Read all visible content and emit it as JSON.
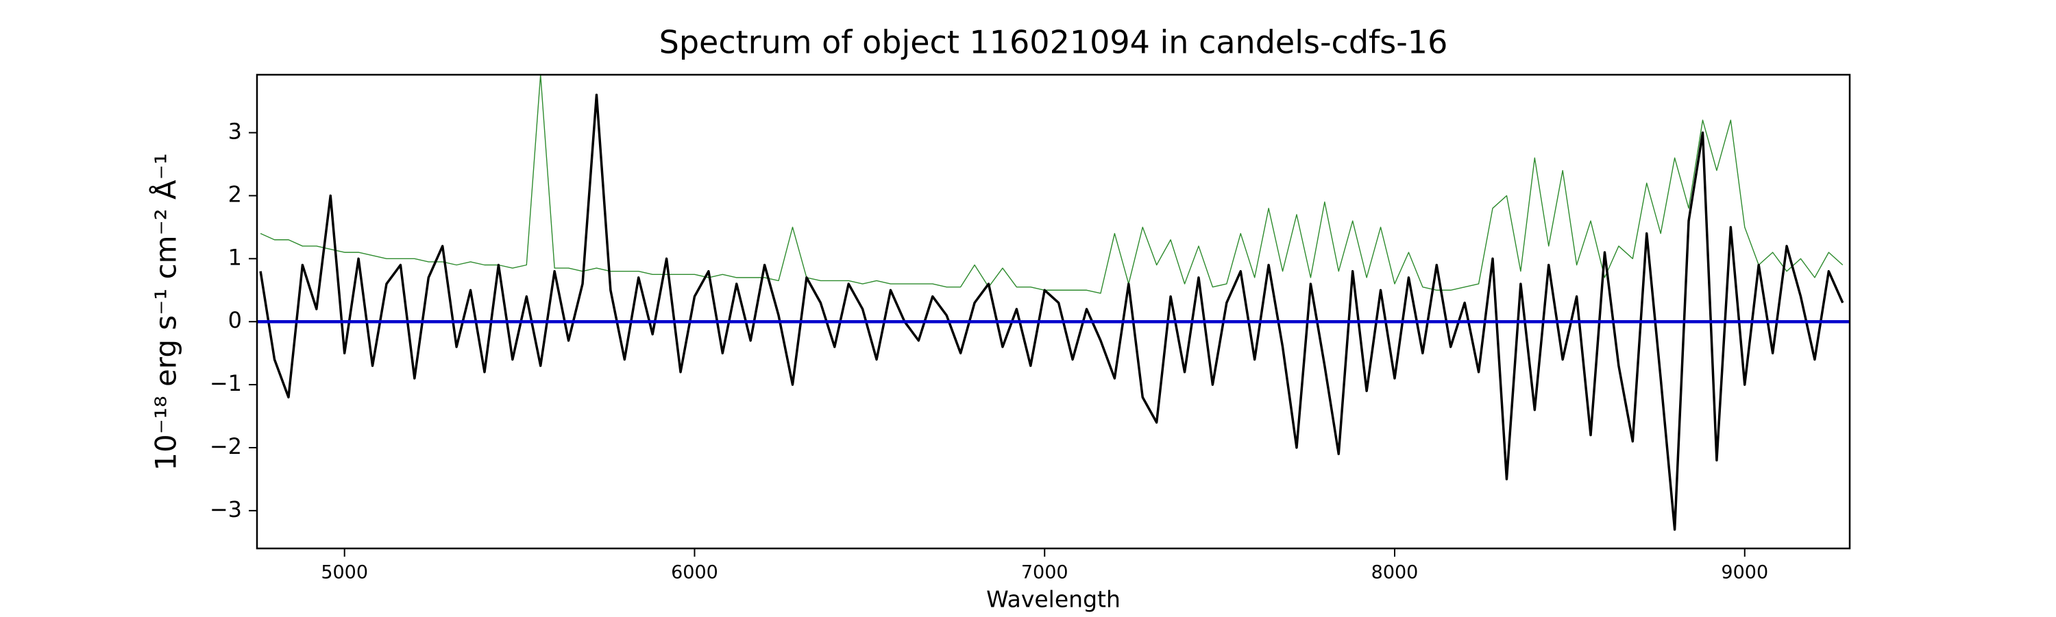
{
  "chart_data": {
    "type": "line",
    "title": "Spectrum of object 116021094 in candels-cdfs-16",
    "xlabel": "Wavelength",
    "ylabel": "10⁻¹⁸ erg s⁻¹ cm⁻² Å⁻¹",
    "xlim": [
      4750,
      9300
    ],
    "ylim": [
      -3.6,
      3.92
    ],
    "xticks": [
      5000,
      6000,
      7000,
      8000,
      9000
    ],
    "yticks": [
      {
        "value": -3,
        "label": "−3"
      },
      {
        "value": -2,
        "label": "−2"
      },
      {
        "value": -1,
        "label": "−1"
      },
      0,
      1,
      2,
      3
    ],
    "series": [
      {
        "color": "#2e8b2e",
        "linewidth": 1.4,
        "x": [
          4760,
          4800,
          4840,
          4880,
          4920,
          4960,
          5000,
          5040,
          5080,
          5120,
          5160,
          5200,
          5240,
          5280,
          5320,
          5360,
          5400,
          5440,
          5480,
          5520,
          5560,
          5600,
          5640,
          5680,
          5720,
          5760,
          5800,
          5840,
          5880,
          5920,
          5960,
          6000,
          6040,
          6080,
          6120,
          6160,
          6200,
          6240,
          6280,
          6320,
          6360,
          6400,
          6440,
          6480,
          6520,
          6560,
          6600,
          6640,
          6680,
          6720,
          6760,
          6800,
          6840,
          6880,
          6920,
          6960,
          7000,
          7040,
          7080,
          7120,
          7160,
          7200,
          7240,
          7280,
          7320,
          7360,
          7400,
          7440,
          7480,
          7520,
          7560,
          7600,
          7640,
          7680,
          7720,
          7760,
          7800,
          7840,
          7880,
          7920,
          7960,
          8000,
          8040,
          8080,
          8120,
          8160,
          8200,
          8240,
          8280,
          8320,
          8360,
          8400,
          8440,
          8480,
          8520,
          8560,
          8600,
          8640,
          8680,
          8720,
          8760,
          8800,
          8840,
          8880,
          8920,
          8960,
          9000,
          9040,
          9080,
          9120,
          9160,
          9200,
          9240,
          9280
        ],
        "values": [
          1.4,
          1.3,
          1.3,
          1.2,
          1.2,
          1.15,
          1.1,
          1.1,
          1.05,
          1.0,
          1.0,
          1.0,
          0.95,
          0.95,
          0.9,
          0.95,
          0.9,
          0.9,
          0.85,
          0.9,
          3.92,
          0.85,
          0.85,
          0.8,
          0.85,
          0.8,
          0.8,
          0.8,
          0.75,
          0.75,
          0.75,
          0.75,
          0.7,
          0.75,
          0.7,
          0.7,
          0.7,
          0.65,
          1.5,
          0.7,
          0.65,
          0.65,
          0.65,
          0.6,
          0.65,
          0.6,
          0.6,
          0.6,
          0.6,
          0.55,
          0.55,
          0.9,
          0.55,
          0.85,
          0.55,
          0.55,
          0.5,
          0.5,
          0.5,
          0.5,
          0.45,
          1.4,
          0.6,
          1.5,
          0.9,
          1.3,
          0.6,
          1.2,
          0.55,
          0.6,
          1.4,
          0.7,
          1.8,
          0.8,
          1.7,
          0.7,
          1.9,
          0.8,
          1.6,
          0.7,
          1.5,
          0.6,
          1.1,
          0.55,
          0.5,
          0.5,
          0.55,
          0.6,
          1.8,
          2.0,
          0.8,
          2.6,
          1.2,
          2.4,
          0.9,
          1.6,
          0.7,
          1.2,
          1.0,
          2.2,
          1.4,
          2.6,
          1.8,
          3.2,
          2.4,
          3.2,
          1.5,
          0.9,
          1.1,
          0.8,
          1.0,
          0.7,
          1.1,
          0.9
        ]
      },
      {
        "color": "#000000",
        "linewidth": 3.5,
        "x": [
          4760,
          4800,
          4840,
          4880,
          4920,
          4960,
          5000,
          5040,
          5080,
          5120,
          5160,
          5200,
          5240,
          5280,
          5320,
          5360,
          5400,
          5440,
          5480,
          5520,
          5560,
          5600,
          5640,
          5680,
          5720,
          5760,
          5800,
          5840,
          5880,
          5920,
          5960,
          6000,
          6040,
          6080,
          6120,
          6160,
          6200,
          6240,
          6280,
          6320,
          6360,
          6400,
          6440,
          6480,
          6520,
          6560,
          6600,
          6640,
          6680,
          6720,
          6760,
          6800,
          6840,
          6880,
          6920,
          6960,
          7000,
          7040,
          7080,
          7120,
          7160,
          7200,
          7240,
          7280,
          7320,
          7360,
          7400,
          7440,
          7480,
          7520,
          7560,
          7600,
          7640,
          7680,
          7720,
          7760,
          7800,
          7840,
          7880,
          7920,
          7960,
          8000,
          8040,
          8080,
          8120,
          8160,
          8200,
          8240,
          8280,
          8320,
          8360,
          8400,
          8440,
          8480,
          8520,
          8560,
          8600,
          8640,
          8680,
          8720,
          8760,
          8800,
          8840,
          8880,
          8920,
          8960,
          9000,
          9040,
          9080,
          9120,
          9160,
          9200,
          9240,
          9280
        ],
        "values": [
          0.8,
          -0.6,
          -1.2,
          0.9,
          0.2,
          2.0,
          -0.5,
          1.0,
          -0.7,
          0.6,
          0.9,
          -0.9,
          0.7,
          1.2,
          -0.4,
          0.5,
          -0.8,
          0.9,
          -0.6,
          0.4,
          -0.7,
          0.8,
          -0.3,
          0.6,
          3.6,
          0.5,
          -0.6,
          0.7,
          -0.2,
          1.0,
          -0.8,
          0.4,
          0.8,
          -0.5,
          0.6,
          -0.3,
          0.9,
          0.1,
          -1.0,
          0.7,
          0.3,
          -0.4,
          0.6,
          0.2,
          -0.6,
          0.5,
          0.0,
          -0.3,
          0.4,
          0.1,
          -0.5,
          0.3,
          0.6,
          -0.4,
          0.2,
          -0.7,
          0.5,
          0.3,
          -0.6,
          0.2,
          -0.3,
          -0.9,
          0.6,
          -1.2,
          -1.6,
          0.4,
          -0.8,
          0.7,
          -1.0,
          0.3,
          0.8,
          -0.6,
          0.9,
          -0.4,
          -2.0,
          0.6,
          -0.7,
          -2.1,
          0.8,
          -1.1,
          0.5,
          -0.9,
          0.7,
          -0.5,
          0.9,
          -0.4,
          0.3,
          -0.8,
          1.0,
          -2.5,
          0.6,
          -1.4,
          0.9,
          -0.6,
          0.4,
          -1.8,
          1.1,
          -0.7,
          -1.9,
          1.4,
          -0.9,
          -3.3,
          1.6,
          3.0,
          -2.2,
          1.5,
          -1.0,
          0.9,
          -0.5,
          1.2,
          0.4,
          -0.6,
          0.8,
          0.3
        ]
      },
      {
        "color": "#0000cc",
        "linewidth": 4.5,
        "x": [
          4750,
          9300
        ],
        "values": [
          0,
          0
        ]
      }
    ]
  }
}
